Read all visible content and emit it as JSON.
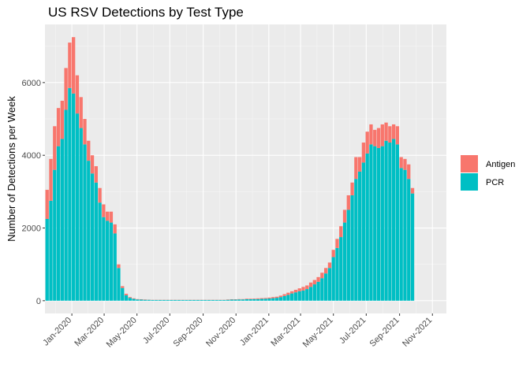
{
  "chart_data": {
    "type": "bar",
    "stacked": true,
    "title": "US RSV Detections by Test Type",
    "xlabel": "",
    "ylabel": "Number of Detections per Week",
    "x_unit": "week_ending_date",
    "x_start": "2019-11-16",
    "x_step_days": 7,
    "xlim": [
      "2019-11-12",
      "2021-11-27"
    ],
    "ylim": [
      -350,
      7600
    ],
    "yticks": [
      0,
      2000,
      4000,
      6000
    ],
    "xticks": [
      {
        "date": "2020-01-01",
        "label": "Jan-2020"
      },
      {
        "date": "2020-03-01",
        "label": "Mar-2020"
      },
      {
        "date": "2020-05-01",
        "label": "May-2020"
      },
      {
        "date": "2020-07-01",
        "label": "Jul-2020"
      },
      {
        "date": "2020-09-01",
        "label": "Sep-2020"
      },
      {
        "date": "2020-11-01",
        "label": "Nov-2020"
      },
      {
        "date": "2021-01-01",
        "label": "Jan-2021"
      },
      {
        "date": "2021-03-01",
        "label": "Mar-2021"
      },
      {
        "date": "2021-05-01",
        "label": "May-2021"
      },
      {
        "date": "2021-07-01",
        "label": "Jul-2021"
      },
      {
        "date": "2021-09-01",
        "label": "Sep-2021"
      },
      {
        "date": "2021-11-01",
        "label": "Nov-2021"
      }
    ],
    "grid": true,
    "legend_position": "right",
    "series": [
      {
        "name": "PCR",
        "color": "#00BFC4",
        "values": [
          2250,
          2750,
          3600,
          4250,
          4450,
          5250,
          5850,
          5700,
          5150,
          4750,
          4300,
          3850,
          3500,
          3250,
          2700,
          2300,
          2200,
          2150,
          1850,
          900,
          350,
          150,
          80,
          50,
          35,
          30,
          25,
          25,
          20,
          20,
          20,
          20,
          20,
          20,
          20,
          20,
          20,
          20,
          20,
          20,
          20,
          20,
          20,
          20,
          20,
          20,
          20,
          20,
          25,
          30,
          30,
          35,
          35,
          40,
          40,
          45,
          45,
          50,
          55,
          60,
          70,
          80,
          100,
          130,
          160,
          200,
          230,
          260,
          280,
          320,
          380,
          450,
          520,
          620,
          750,
          900,
          1200,
          1450,
          1750,
          2150,
          2500,
          2900,
          3350,
          3550,
          3800,
          4050,
          4300,
          4250,
          4200,
          4250,
          4400,
          4350,
          4450,
          4300,
          3650,
          3600,
          3350,
          2950
        ]
      },
      {
        "name": "Antigen",
        "color": "#F8766D",
        "values": [
          800,
          1150,
          1200,
          1050,
          1050,
          1150,
          1250,
          1550,
          1050,
          850,
          700,
          550,
          500,
          450,
          400,
          350,
          250,
          300,
          250,
          100,
          50,
          40,
          20,
          15,
          10,
          10,
          10,
          5,
          5,
          5,
          5,
          5,
          5,
          5,
          5,
          5,
          5,
          5,
          5,
          5,
          5,
          5,
          5,
          5,
          5,
          5,
          5,
          5,
          10,
          10,
          10,
          10,
          10,
          15,
          15,
          15,
          20,
          20,
          20,
          25,
          30,
          30,
          40,
          50,
          60,
          60,
          70,
          80,
          100,
          100,
          120,
          120,
          130,
          150,
          150,
          150,
          200,
          250,
          300,
          350,
          400,
          350,
          600,
          400,
          550,
          600,
          550,
          450,
          550,
          600,
          500,
          450,
          400,
          500,
          300,
          300,
          400,
          150
        ]
      }
    ]
  },
  "legend": {
    "items": [
      {
        "label": "Antigen",
        "color": "#F8766D"
      },
      {
        "label": "PCR",
        "color": "#00BFC4"
      }
    ]
  }
}
